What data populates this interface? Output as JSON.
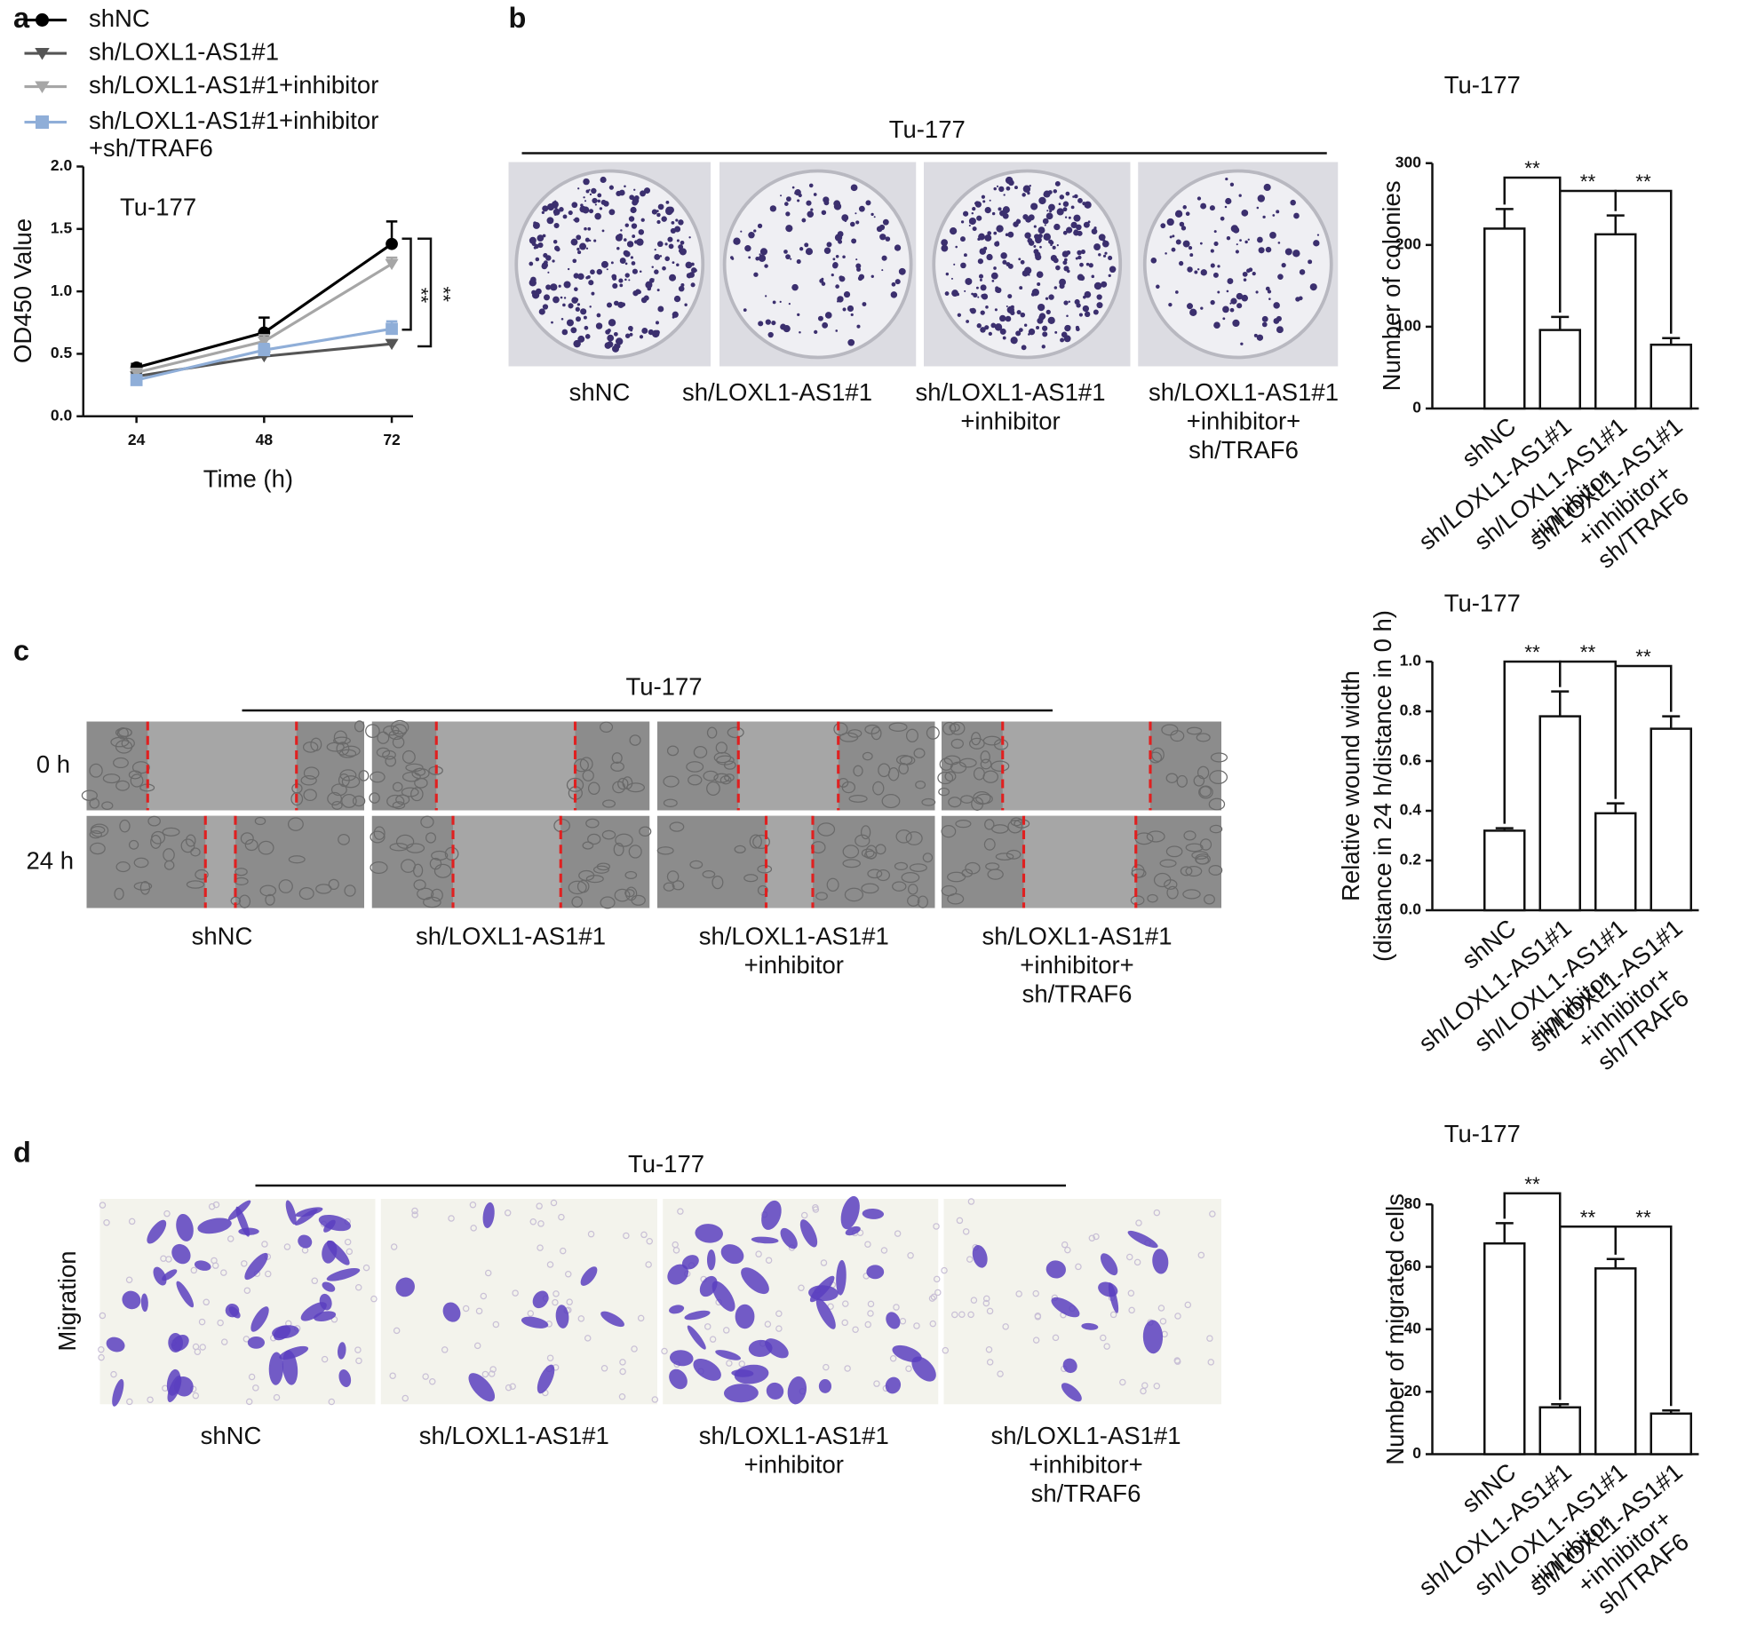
{
  "panel_labels": [
    "a",
    "b",
    "c",
    "d"
  ],
  "chart_data": [
    {
      "type": "line",
      "annotations": [
        "Tu-177",
        "**",
        "**"
      ],
      "x_label": "Time (h)",
      "y_label": "OD450 Value",
      "x": [
        24,
        48,
        72
      ],
      "xlim": [
        14,
        76
      ],
      "xticks": [
        24,
        48,
        72
      ],
      "ylim": [
        0,
        2
      ],
      "yticks": [
        {
          "value": 0,
          "label": "0.0"
        },
        0.5,
        {
          "value": 1,
          "label": "1.0"
        },
        1.5,
        {
          "value": 2,
          "label": "2.0"
        }
      ],
      "series": [
        {
          "name": "shNC",
          "color": "#000000",
          "marker": "circle",
          "values": [
            0.39,
            0.67,
            1.38
          ],
          "errors": [
            0.03,
            0.12,
            0.18
          ]
        },
        {
          "name": "sh/LOXL1-AS1#1",
          "color": "#555555",
          "marker": "triangle-down",
          "values": [
            0.32,
            0.48,
            0.58
          ],
          "errors": [
            0.02,
            0.03,
            0.03
          ]
        },
        {
          "name": "sh/LOXL1-AS1#1+inhibitor",
          "color": "#a6a6a6",
          "marker": "triangle-down",
          "values": [
            0.35,
            0.6,
            1.22
          ],
          "errors": [
            0.02,
            0.05,
            0.05
          ]
        },
        {
          "name": [
            "sh/LOXL1-AS1#1+inhibitor",
            "+sh/TRAF6"
          ],
          "color": "#8faed8",
          "marker": "square",
          "values": [
            0.29,
            0.53,
            0.7
          ],
          "errors": [
            0.03,
            0.05,
            0.06
          ]
        }
      ]
    },
    {
      "type": "bar",
      "title": "Tu-177",
      "y_label": "Number of colonies",
      "annotations": [
        "**",
        "**",
        "**"
      ],
      "categories": [
        [
          "shNC"
        ],
        [
          "sh/LOXL1-AS1#1"
        ],
        [
          "sh/LOXL1-AS1#1",
          "+inhibitor"
        ],
        [
          "sh/LOXL1-AS1#1",
          "+inhibitor+",
          "sh/TRAF6"
        ]
      ],
      "values": [
        220,
        96,
        213,
        78
      ],
      "errors": [
        24,
        16,
        23,
        8
      ],
      "color": "#ffffff",
      "ylim": [
        0,
        300
      ],
      "yticks": [
        0,
        100,
        200,
        300
      ]
    },
    {
      "type": "bar",
      "title": "Tu-177",
      "y_label": [
        "Relative wound width",
        "(distance in 24 h/distance in 0 h)"
      ],
      "annotations": [
        "**",
        "**",
        "**"
      ],
      "categories": [
        [
          "shNC"
        ],
        [
          "sh/LOXL1-AS1#1"
        ],
        [
          "sh/LOXL1-AS1#1",
          "+inhibitor"
        ],
        [
          "sh/LOXL1-AS1#1",
          "+inhibitor+",
          "sh/TRAF6"
        ]
      ],
      "values": [
        0.32,
        0.78,
        0.39,
        0.73
      ],
      "errors": [
        0.01,
        0.1,
        0.04,
        0.05
      ],
      "color": "#ffffff",
      "ylim": [
        0,
        1
      ],
      "yticks": [
        {
          "value": 0,
          "label": "0.0"
        },
        0.2,
        0.4,
        0.6,
        0.8,
        {
          "value": 1,
          "label": "1.0"
        }
      ]
    },
    {
      "type": "bar",
      "title": "Tu-177",
      "y_label": "Number of migrated cells",
      "annotations": [
        "**",
        "**",
        "**"
      ],
      "categories": [
        [
          "shNC"
        ],
        [
          "sh/LOXL1-AS1#1"
        ],
        [
          "sh/LOXL1-AS1#1",
          "+inhibitor"
        ],
        [
          "sh/LOXL1-AS1#1",
          "+inhibitor+",
          "sh/TRAF6"
        ]
      ],
      "values": [
        67.5,
        15,
        59.5,
        13
      ],
      "errors": [
        6.5,
        1,
        3,
        1
      ],
      "color": "#ffffff",
      "ylim": [
        0,
        80
      ],
      "yticks": [
        0,
        20,
        40,
        60,
        80
      ]
    }
  ],
  "image_panels": [
    {
      "title": "Tu-177",
      "labels": [
        [
          "shNC"
        ],
        [
          "sh/LOXL1-AS1#1"
        ],
        [
          "sh/LOXL1-AS1#1",
          "+inhibitor"
        ],
        [
          "sh/LOXL1-AS1#1",
          "+inhibitor+",
          "sh/TRAF6"
        ]
      ]
    },
    {
      "title": "Tu-177",
      "row_labels": [
        "0 h",
        "24 h"
      ],
      "labels": [
        [
          "shNC"
        ],
        [
          "sh/LOXL1-AS1#1"
        ],
        [
          "sh/LOXL1-AS1#1",
          "+inhibitor"
        ],
        [
          "sh/LOXL1-AS1#1",
          "+inhibitor+",
          "sh/TRAF6"
        ]
      ]
    },
    {
      "title": "Tu-177",
      "side_label": "Migration",
      "labels": [
        [
          "shNC"
        ],
        [
          "sh/LOXL1-AS1#1"
        ],
        [
          "sh/LOXL1-AS1#1",
          "+inhibitor"
        ],
        [
          "sh/LOXL1-AS1#1",
          "+inhibitor+",
          "sh/TRAF6"
        ]
      ]
    }
  ]
}
